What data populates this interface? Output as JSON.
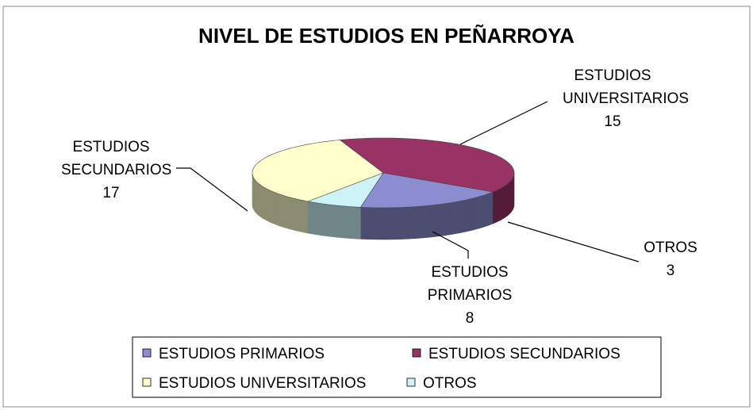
{
  "chart_data": {
    "type": "pie3d",
    "title": "NIVEL DE ESTUDIOS EN PEÑARROYA",
    "categories": [
      "ESTUDIOS PRIMARIOS",
      "ESTUDIOS SECUNDARIOS",
      "ESTUDIOS UNIVERSITARIOS",
      "OTROS"
    ],
    "values": [
      8,
      17,
      15,
      3
    ],
    "colors": [
      "#8c8cd0",
      "#993366",
      "#ffffcc",
      "#ccf4f8"
    ],
    "legend": "bottom"
  }
}
